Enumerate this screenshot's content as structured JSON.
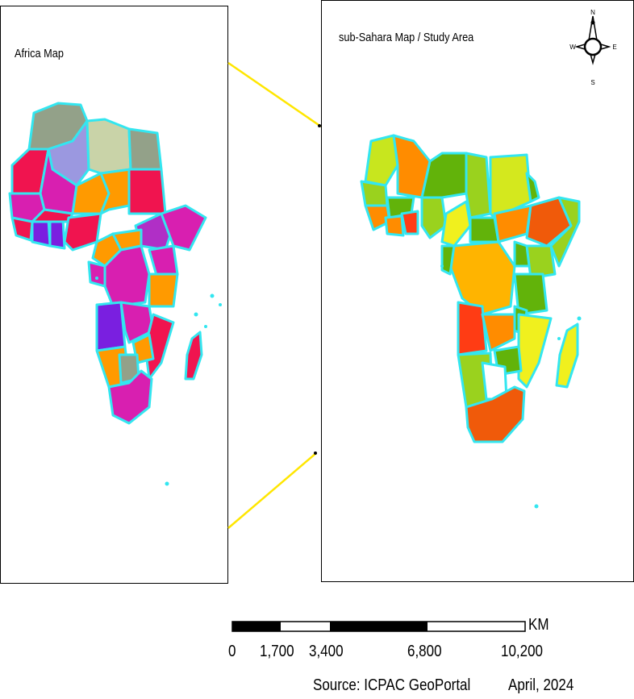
{
  "left_map": {
    "title": "Africa Map",
    "colors": {
      "border": "#33e6f0",
      "magenta": "#d81fb0",
      "crimson": "#f0144f",
      "orange": "#ff9a00",
      "purple": "#7a1fe0",
      "lavender": "#9b98e0",
      "sage": "#c9d3a8",
      "greygreen": "#93a189",
      "violet": "#b02fc6"
    }
  },
  "right_map": {
    "title": "sub-Sahara Map / Study Area",
    "colors": {
      "border": "#33e6f0",
      "yellowgreen": "#c8e61e",
      "green": "#62b30a",
      "lightgreen": "#9ad21e",
      "orange": "#ff8c00",
      "amber": "#ffb400",
      "red": "#ff3c14",
      "yellow": "#f0f01e",
      "darkorange": "#f05a0a"
    }
  },
  "compass": {
    "north": "N",
    "south": "S",
    "east": "E",
    "west": "W"
  },
  "scale_bar": {
    "unit": "KM",
    "ticks": [
      "0",
      "1,700",
      "3,400",
      "6,800",
      "10,200"
    ]
  },
  "footer": {
    "source": "Source: ICPAC GeoPortal",
    "date": "April, 2024"
  },
  "connector_color": "#ffe600"
}
